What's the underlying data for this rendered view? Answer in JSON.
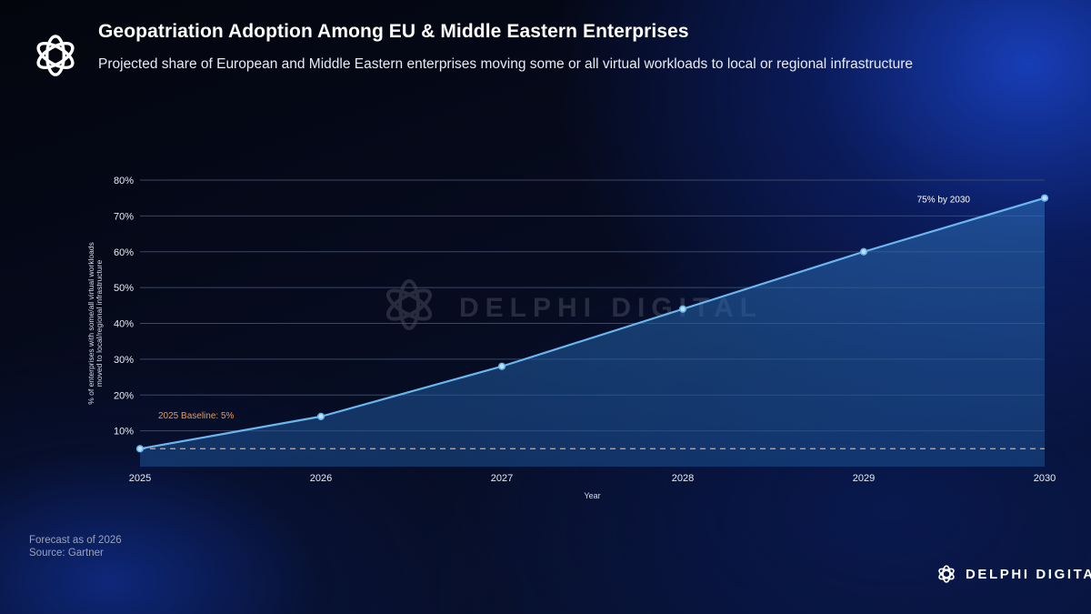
{
  "header": {
    "title": "Geopatriation Adoption Among EU & Middle Eastern Enterprises",
    "subtitle": "Projected share of European and Middle Eastern enterprises moving some or all virtual workloads to local or regional infrastructure"
  },
  "footer": {
    "forecast_note": "Forecast as of 2026",
    "source": "Source: Gartner"
  },
  "brand": {
    "name": "DELPHI DIGITAL",
    "watermark": "DELPHI DIGITAL",
    "logo_icon": "delphi-digital-logo"
  },
  "colors": {
    "line": "#6cb6f0",
    "area_top": "#2c6fb8",
    "baseline": "#e59a5c",
    "grid": "#3a4766"
  },
  "chart_data": {
    "type": "area",
    "x": [
      2025,
      2026,
      2027,
      2028,
      2029,
      2030
    ],
    "series": [
      {
        "values": [
          5,
          14,
          28,
          44,
          60,
          75
        ]
      }
    ],
    "xlabel": "Year",
    "ylabel_lines": [
      "% of enterprises with some/all virtual workloads",
      "moved to local/regional infrastructure"
    ],
    "ylim": [
      0,
      80
    ],
    "yticks": [
      10,
      20,
      30,
      40,
      50,
      60,
      70,
      80
    ],
    "ytick_labels": [
      "10%",
      "20%",
      "30%",
      "40%",
      "50%",
      "60%",
      "70%",
      "80%"
    ],
    "xtick_labels": [
      "2025",
      "2026",
      "2027",
      "2028",
      "2029",
      "2030"
    ],
    "grid": "horizontal",
    "baseline": {
      "value": 5,
      "label": "2025 Baseline: 5%"
    },
    "annotations": [
      {
        "x": 2030,
        "y": 75,
        "text": "75% by 2030"
      }
    ]
  }
}
